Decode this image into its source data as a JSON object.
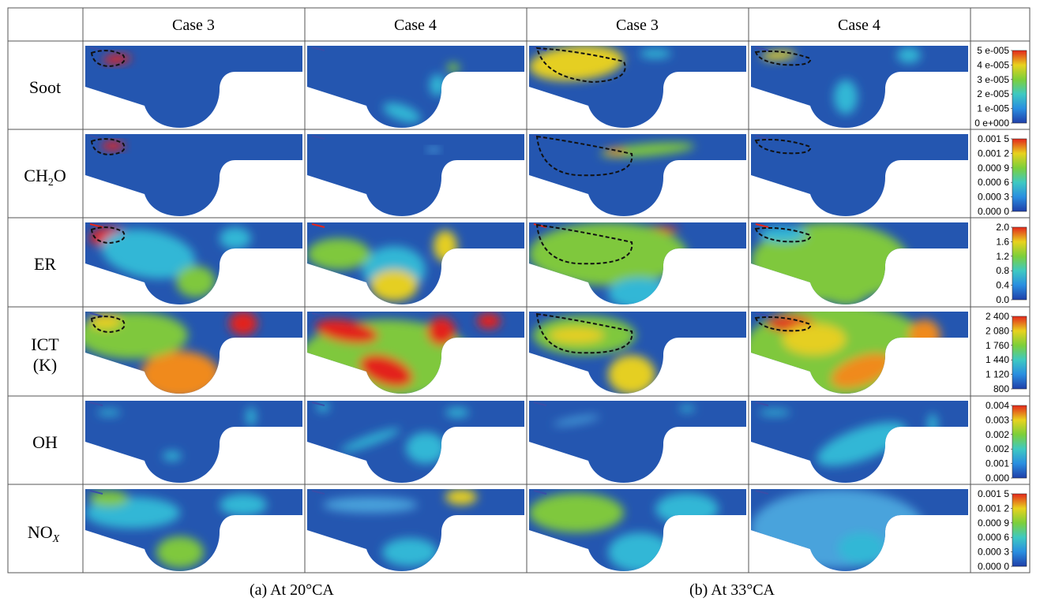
{
  "headers": [
    "Case 3",
    "Case 4",
    "Case 3",
    "Case 4"
  ],
  "rows": [
    {
      "label": "Soot",
      "colorbar": [
        "5 e-005",
        "4 e-005",
        "3 e-005",
        "2 e-005",
        "1 e-005",
        "0 e+000"
      ]
    },
    {
      "label": "CH",
      "sub": "2",
      "tail": "O",
      "colorbar": [
        "0.001 5",
        "0.001 2",
        "0.000 9",
        "0.000 6",
        "0.000 3",
        "0.000 0"
      ]
    },
    {
      "label": "ER",
      "colorbar": [
        "2.0",
        "1.6",
        "1.2",
        "0.8",
        "0.4",
        "0.0"
      ]
    },
    {
      "label": "ICT",
      "label2": "(K)",
      "colorbar": [
        "2 400",
        "2 080",
        "1 760",
        "1 440",
        "1 120",
        "800"
      ]
    },
    {
      "label": "OH",
      "colorbar": [
        "0.004",
        "0.003",
        "0.002",
        "0.002",
        "0.001",
        "0.000"
      ]
    },
    {
      "label": "NO",
      "sub": "X",
      "colorbar": [
        "0.001 5",
        "0.001 2",
        "0.000 9",
        "0.000 6",
        "0.000 3",
        "0.000 0"
      ]
    }
  ],
  "captions": {
    "a": "(a)  At 20°CA",
    "b": "(b)  At 33°CA"
  }
}
